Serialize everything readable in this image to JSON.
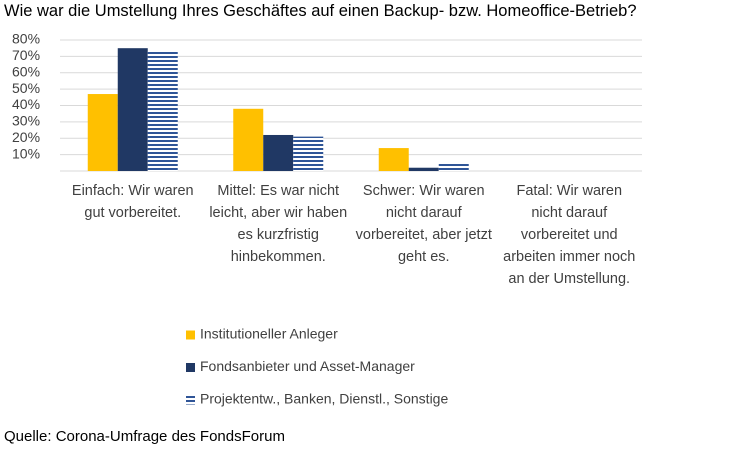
{
  "chart_data": {
    "type": "bar",
    "title": "Wie war die Umstellung Ihres Geschäftes auf einen Backup- bzw. Homeoffice-Betrieb?",
    "source": "Quelle: Corona-Umfrage des FondsForum",
    "categories": [
      "Einfach: Wir waren gut vorbereitet.",
      "Mittel: Es war nicht leicht, aber wir haben es kurzfristig hinbekommen.",
      "Schwer: Wir waren nicht darauf vorbereitet, aber jetzt geht es.",
      "Fatal: Wir waren nicht darauf vorbereitet und arbeiten immer noch an der Umstellung."
    ],
    "series": [
      {
        "name": "Institutioneller Anleger",
        "color": "#ffc000",
        "values": [
          47,
          38,
          14,
          0
        ]
      },
      {
        "name": "Fondsanbieter und Asset-Manager",
        "color": "#203864",
        "values": [
          75,
          22,
          2,
          0
        ]
      },
      {
        "name": "Projektentw., Banken, Dienstl., Sonstige",
        "color": "#2f5597",
        "pattern": "horizontal-stripes",
        "values": [
          73,
          21,
          5,
          0
        ]
      }
    ],
    "ylim": [
      0,
      80
    ],
    "yticks": [
      {
        "value": 10,
        "label": "10%"
      },
      {
        "value": 20,
        "label": "20%"
      },
      {
        "value": 30,
        "label": "30%"
      },
      {
        "value": 40,
        "label": "40%"
      },
      {
        "value": 50,
        "label": "50%"
      },
      {
        "value": 60,
        "label": "60%"
      },
      {
        "value": 70,
        "label": "70%"
      },
      {
        "value": 80,
        "label": "80%"
      }
    ],
    "grid": true,
    "legend": "bottom"
  }
}
